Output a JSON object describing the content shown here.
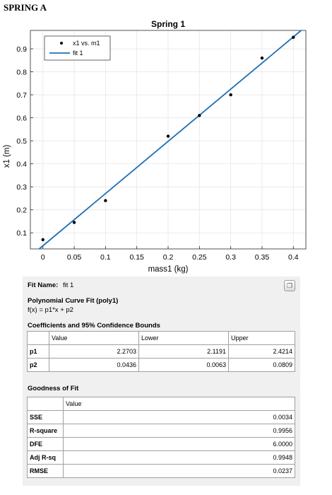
{
  "page_label": "SPRING A",
  "chart_data": {
    "type": "scatter",
    "title": "Spring 1",
    "xlabel": "mass1 (kg)",
    "ylabel": "x1 (m)",
    "xlim": [
      -0.02,
      0.42
    ],
    "ylim": [
      0.03,
      0.98
    ],
    "xticks": [
      0,
      0.05,
      0.1,
      0.15,
      0.2,
      0.25,
      0.3,
      0.35,
      0.4
    ],
    "xtick_labels": [
      "0",
      "0.05",
      "0.1",
      "0.15",
      "0.2",
      "0.25",
      "0.3",
      "0.35",
      "0.4"
    ],
    "yticks": [
      0.1,
      0.2,
      0.3,
      0.4,
      0.5,
      0.6,
      0.7,
      0.8,
      0.9
    ],
    "ytick_labels": [
      "0.1",
      "0.2",
      "0.3",
      "0.4",
      "0.5",
      "0.6",
      "0.7",
      "0.8",
      "0.9"
    ],
    "grid": true,
    "legend_position": "top-left",
    "series": [
      {
        "name": "x1 vs. m1",
        "kind": "markers",
        "color": "#000000",
        "x": [
          0,
          0.05,
          0.1,
          0.2,
          0.25,
          0.3,
          0.35,
          0.4
        ],
        "y": [
          0.07,
          0.145,
          0.24,
          0.52,
          0.61,
          0.7,
          0.86,
          0.95
        ]
      },
      {
        "name": "fit 1",
        "kind": "line",
        "color": "#1f6fb2",
        "slope": 2.2703,
        "intercept": 0.0436
      }
    ]
  },
  "fit_panel": {
    "fit_name_label": "Fit Name:",
    "fit_name": "fit 1",
    "model_title": "Polynomial Curve Fit (poly1)",
    "equation": "f(x) = p1*x + p2",
    "coef_title": "Coefficients and 95% Confidence Bounds",
    "coef_headers": [
      "",
      "Value",
      "Lower",
      "Upper"
    ],
    "coef_rows": [
      {
        "name": "p1",
        "value": "2.2703",
        "lower": "2.1191",
        "upper": "2.4214"
      },
      {
        "name": "p2",
        "value": "0.0436",
        "lower": "0.0063",
        "upper": "0.0809"
      }
    ],
    "gof_title": "Goodness of Fit",
    "gof_headers": [
      "",
      "Value"
    ],
    "gof_rows": [
      {
        "name": "SSE",
        "value": "0.0034"
      },
      {
        "name": "R-square",
        "value": "0.9956"
      },
      {
        "name": "DFE",
        "value": "6.0000"
      },
      {
        "name": "Adj R-sq",
        "value": "0.9948"
      },
      {
        "name": "RMSE",
        "value": "0.0237"
      }
    ],
    "copy_icon": "copy-icon"
  }
}
